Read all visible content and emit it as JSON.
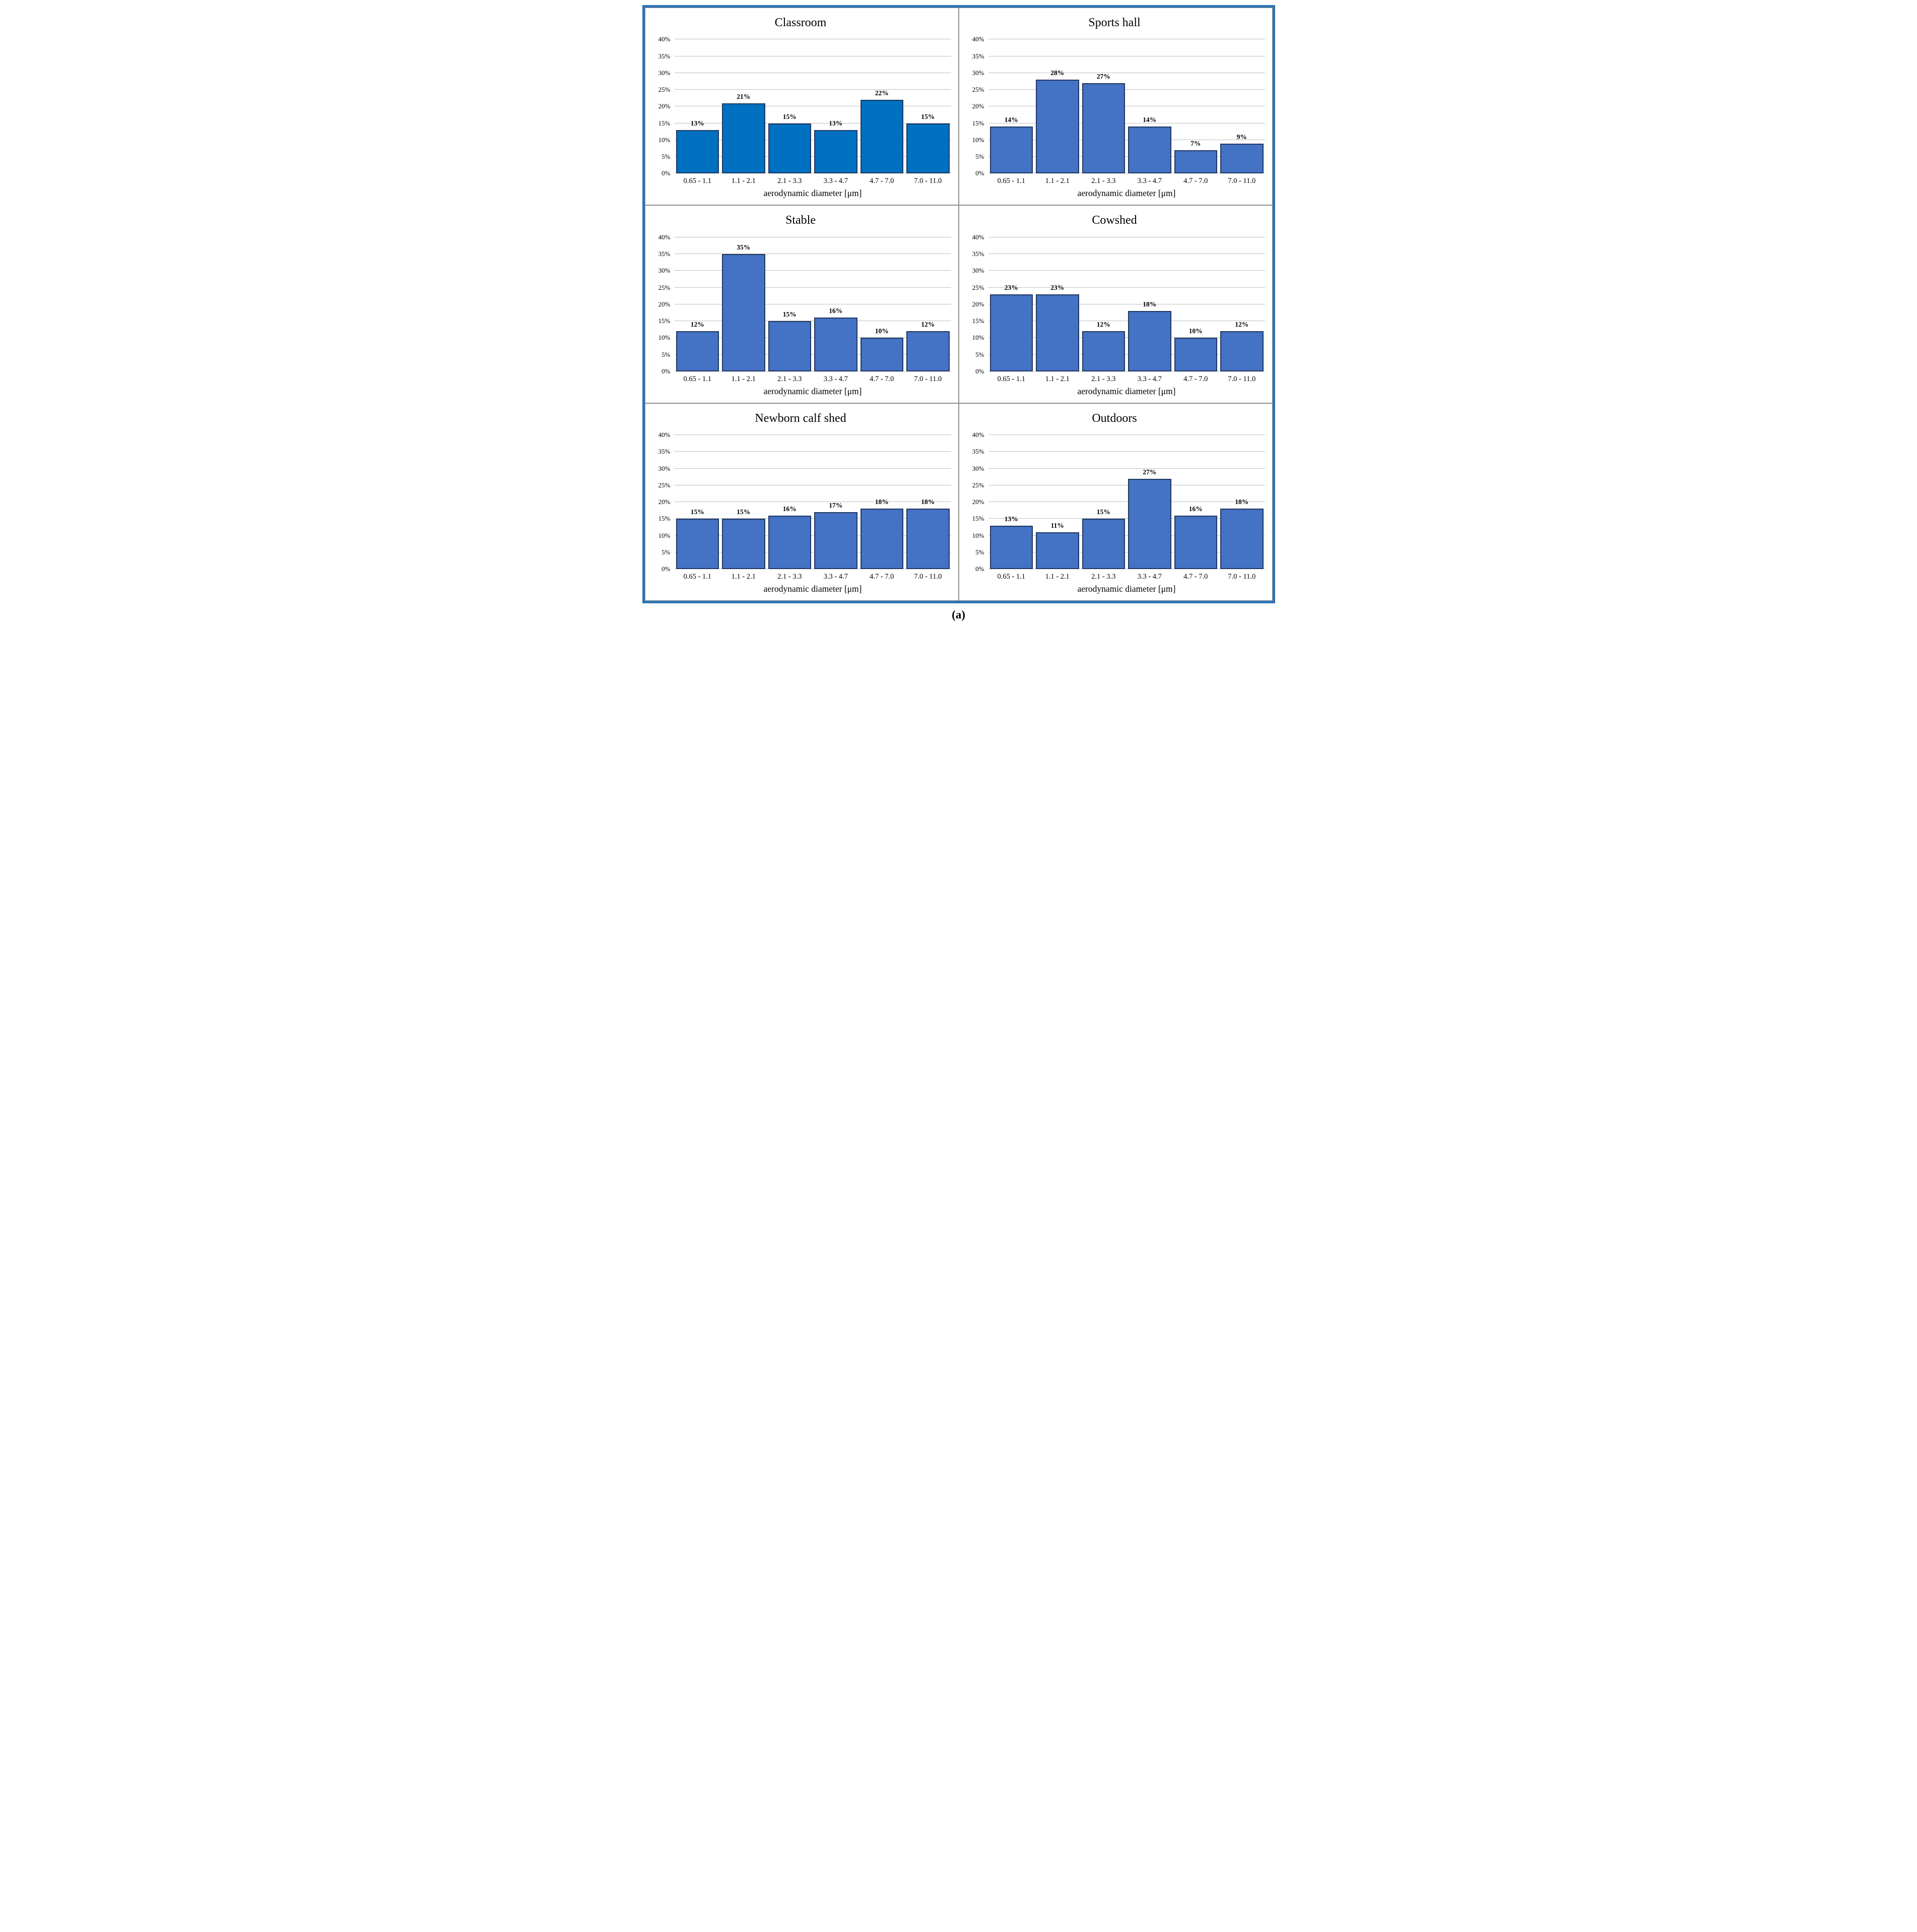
{
  "figure": {
    "caption": "(a)",
    "frame_color": "#2E75B6",
    "divider_color": "#8f8f8f",
    "gridline_color": "#BFBFBF"
  },
  "chart_data": [
    {
      "type": "bar",
      "title": "Classroom",
      "categories": [
        "0.65 - 1.1",
        "1.1 - 2.1",
        "2.1 - 3.3",
        "3.3 - 4.7",
        "4.7 - 7.0",
        "7.0 - 11.0"
      ],
      "values": [
        13,
        21,
        15,
        13,
        22,
        15
      ],
      "value_labels": [
        "13%",
        "21%",
        "15%",
        "13%",
        "22%",
        "15%"
      ],
      "xlabel": "aerodynamic diameter [μm]",
      "ylabel": "",
      "ylim": [
        0,
        40
      ],
      "yticks": [
        0,
        5,
        10,
        15,
        20,
        25,
        30,
        35,
        40
      ],
      "ytick_labels": [
        "0%",
        "5%",
        "10%",
        "15%",
        "20%",
        "25%",
        "30%",
        "35%",
        "40%"
      ],
      "grid": true,
      "legend": "none",
      "bar_color": "#0070C0",
      "bar_border": "#1F3864"
    },
    {
      "type": "bar",
      "title": "Sports hall",
      "categories": [
        "0.65 - 1.1",
        "1.1 - 2.1",
        "2.1 - 3.3",
        "3.3 - 4.7",
        "4.7 - 7.0",
        "7.0 - 11.0"
      ],
      "values": [
        14,
        28,
        27,
        14,
        7,
        9
      ],
      "value_labels": [
        "14%",
        "28%",
        "27%",
        "14%",
        "7%",
        "9%"
      ],
      "xlabel": "aerodynamic diameter [μm]",
      "ylabel": "",
      "ylim": [
        0,
        40
      ],
      "yticks": [
        0,
        5,
        10,
        15,
        20,
        25,
        30,
        35,
        40
      ],
      "ytick_labels": [
        "0%",
        "5%",
        "10%",
        "15%",
        "20%",
        "25%",
        "30%",
        "35%",
        "40%"
      ],
      "grid": true,
      "legend": "none",
      "bar_color": "#4472C4",
      "bar_border": "#1F3864"
    },
    {
      "type": "bar",
      "title": "Stable",
      "categories": [
        "0.65 - 1.1",
        "1.1 - 2.1",
        "2.1 - 3.3",
        "3.3 - 4.7",
        "4.7 - 7.0",
        "7.0 - 11.0"
      ],
      "values": [
        12,
        35,
        15,
        16,
        10,
        12
      ],
      "value_labels": [
        "12%",
        "35%",
        "15%",
        "16%",
        "10%",
        "12%"
      ],
      "xlabel": "aerodynamic diameter [μm]",
      "ylabel": "",
      "ylim": [
        0,
        40
      ],
      "yticks": [
        0,
        5,
        10,
        15,
        20,
        25,
        30,
        35,
        40
      ],
      "ytick_labels": [
        "0%",
        "5%",
        "10%",
        "15%",
        "20%",
        "25%",
        "30%",
        "35%",
        "40%"
      ],
      "grid": true,
      "legend": "none",
      "bar_color": "#4472C4",
      "bar_border": "#1F3864"
    },
    {
      "type": "bar",
      "title": "Cowshed",
      "categories": [
        "0.65 - 1.1",
        "1.1 - 2.1",
        "2.1 - 3.3",
        "3.3 - 4.7",
        "4.7 - 7.0",
        "7.0 - 11.0"
      ],
      "values": [
        23,
        23,
        12,
        18,
        10,
        12
      ],
      "value_labels": [
        "23%",
        "23%",
        "12%",
        "18%",
        "10%",
        "12%"
      ],
      "xlabel": "aerodynamic diameter [μm]",
      "ylabel": "",
      "ylim": [
        0,
        40
      ],
      "yticks": [
        0,
        5,
        10,
        15,
        20,
        25,
        30,
        35,
        40
      ],
      "ytick_labels": [
        "0%",
        "5%",
        "10%",
        "15%",
        "20%",
        "25%",
        "30%",
        "35%",
        "40%"
      ],
      "grid": true,
      "legend": "none",
      "bar_color": "#4472C4",
      "bar_border": "#1F3864"
    },
    {
      "type": "bar",
      "title": "Newborn calf shed",
      "categories": [
        "0.65 - 1.1",
        "1.1 - 2.1",
        "2.1 - 3.3",
        "3.3 - 4.7",
        "4.7 - 7.0",
        "7.0 - 11.0"
      ],
      "values": [
        15,
        15,
        16,
        17,
        18,
        18
      ],
      "value_labels": [
        "15%",
        "15%",
        "16%",
        "17%",
        "18%",
        "18%"
      ],
      "xlabel": "aerodynamic diameter [μm]",
      "ylabel": "",
      "ylim": [
        0,
        40
      ],
      "yticks": [
        0,
        5,
        10,
        15,
        20,
        25,
        30,
        35,
        40
      ],
      "ytick_labels": [
        "0%",
        "5%",
        "10%",
        "15%",
        "20%",
        "25%",
        "30%",
        "35%",
        "40%"
      ],
      "grid": true,
      "legend": "none",
      "bar_color": "#4472C4",
      "bar_border": "#1F3864"
    },
    {
      "type": "bar",
      "title": "Outdoors",
      "categories": [
        "0.65 - 1.1",
        "1.1 - 2.1",
        "2.1 - 3.3",
        "3.3 - 4.7",
        "4.7 - 7.0",
        "7.0 - 11.0"
      ],
      "values": [
        13,
        11,
        15,
        27,
        16,
        18
      ],
      "value_labels": [
        "13%",
        "11%",
        "15%",
        "27%",
        "16%",
        "18%"
      ],
      "xlabel": "aerodynamic diameter [μm]",
      "ylabel": "",
      "ylim": [
        0,
        40
      ],
      "yticks": [
        0,
        5,
        10,
        15,
        20,
        25,
        30,
        35,
        40
      ],
      "ytick_labels": [
        "0%",
        "5%",
        "10%",
        "15%",
        "20%",
        "25%",
        "30%",
        "35%",
        "40%"
      ],
      "grid": true,
      "legend": "none",
      "bar_color": "#4472C4",
      "bar_border": "#1F3864"
    }
  ]
}
